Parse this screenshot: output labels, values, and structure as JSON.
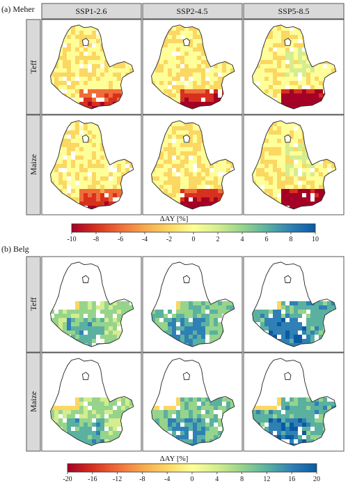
{
  "figure": {
    "panel_a_label": "(a) Meher",
    "panel_b_label": "(b) Belg",
    "scenarios": [
      "SSP1-2.6",
      "SSP2-4.5",
      "SSP5-8.5"
    ],
    "crops": [
      "Teff",
      "Maize"
    ]
  },
  "colorbar_a": {
    "title": "ΔAY [%]",
    "ticks": [
      "-10",
      "-8",
      "-6",
      "-4",
      "-2",
      "0",
      "2",
      "4",
      "6",
      "8",
      "10"
    ],
    "range": [
      -10,
      10
    ]
  },
  "colorbar_b": {
    "title": "ΔAY [%]",
    "ticks": [
      "-20",
      "-16",
      "-12",
      "-8",
      "-4",
      "0",
      "4",
      "8",
      "12",
      "16",
      "20"
    ],
    "range": [
      -20,
      20
    ]
  },
  "colors": {
    "scale": [
      "#a50026",
      "#d7301f",
      "#ef6d39",
      "#f6a94d",
      "#fbd763",
      "#ffff99",
      "#d4ed8e",
      "#96d48c",
      "#5bb1a0",
      "#2f80b5",
      "#0a5aa3"
    ],
    "header_bg": "#d9d9d9",
    "frame": "#555555"
  }
}
